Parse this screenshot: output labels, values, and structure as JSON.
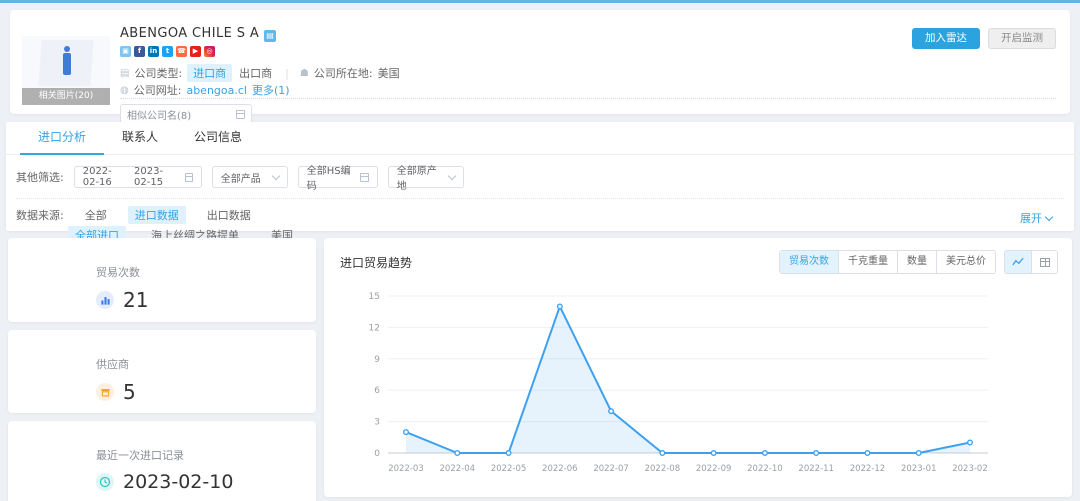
{
  "colors": {
    "accent": "#36a3e6",
    "primary_button": "#2aa3df",
    "chart_line": "#3da1f0",
    "highlight_bg": "#def1fc"
  },
  "header": {
    "company_name": "ABENGOA CHILE S A",
    "related_images_label": "相关图片(20)",
    "company_type_label": "公司类型:",
    "company_type_importer": "进口商",
    "company_type_exporter": "出口商",
    "location_label": "公司所在地:",
    "location_value": "美国",
    "website_label": "公司网址:",
    "website_value": "abengoa.cl",
    "more_label": "更多(1)",
    "similar_select_label": "相似公司名(8)",
    "add_radar_button": "加入雷达",
    "monitor_button": "开启监测",
    "social_icons": [
      "app",
      "facebook",
      "linkedin",
      "twitter",
      "phone",
      "youtube",
      "instagram"
    ]
  },
  "tabs": [
    {
      "label": "进口分析",
      "active": true
    },
    {
      "label": "联系人",
      "active": false
    },
    {
      "label": "公司信息",
      "active": false
    }
  ],
  "filters": {
    "other_label": "其他筛选:",
    "date_start": "2022-02-16",
    "date_end": "2023-02-15",
    "product_select": "全部产品",
    "hs_code_select": "全部HS编码",
    "origin_select": "全部原产地",
    "data_source_label": "数据来源:",
    "data_sources": [
      "全部",
      "进口数据",
      "出口数据"
    ],
    "active_data_source": "进口数据",
    "sub_sources": [
      "全部进口",
      "海上丝绸之路提单",
      "美国"
    ],
    "active_sub_source": "全部进口",
    "expand_label": "展开"
  },
  "stats": [
    {
      "label": "贸易次数",
      "value": "21",
      "icon": "bar-chart-icon"
    },
    {
      "label": "供应商",
      "value": "5",
      "icon": "shop-icon"
    },
    {
      "label": "最近一次进口记录",
      "value": "2023-02-10",
      "icon": "clock-icon"
    }
  ],
  "chart": {
    "title": "进口贸易趋势",
    "metrics": [
      "贸易次数",
      "千克重量",
      "数量",
      "美元总价"
    ],
    "active_metric": "贸易次数",
    "view_toggles": [
      "line-chart-icon",
      "table-icon"
    ]
  },
  "chart_data": {
    "type": "line",
    "title": "进口贸易趋势",
    "x": [
      "2022-03",
      "2022-04",
      "2022-05",
      "2022-06",
      "2022-07",
      "2022-08",
      "2022-09",
      "2022-10",
      "2022-11",
      "2022-12",
      "2023-01",
      "2023-02"
    ],
    "values": [
      2,
      0,
      0,
      14,
      4,
      0,
      0,
      0,
      0,
      0,
      0,
      1
    ],
    "ylim": [
      0,
      15
    ],
    "yticks": [
      0,
      3,
      6,
      9,
      12,
      15
    ],
    "xlabel": "",
    "ylabel": "",
    "grid": true,
    "legend": "none",
    "line_color": "#3da1f0",
    "area_fill": "rgba(61,161,240,0.13)"
  }
}
